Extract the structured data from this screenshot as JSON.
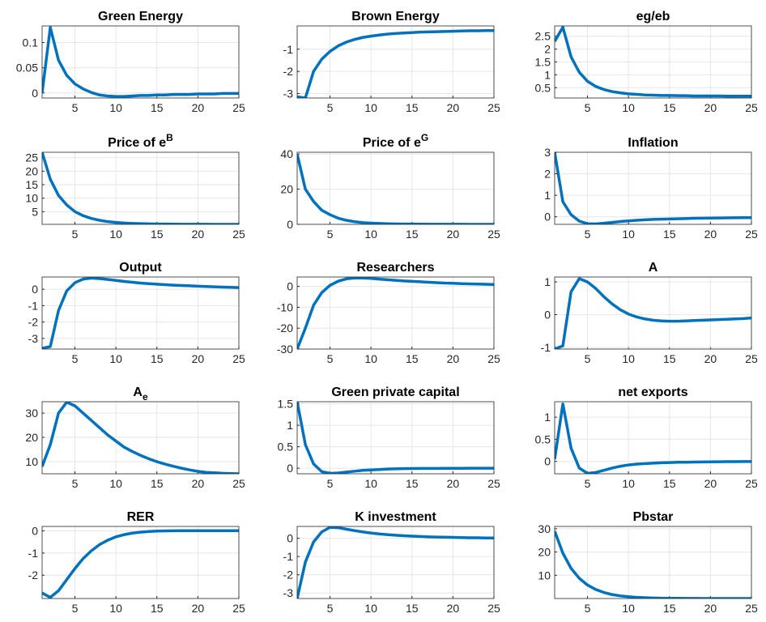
{
  "chart_data": [
    {
      "type": "line",
      "title": "Green Energy",
      "x": [
        1,
        2,
        3,
        4,
        5,
        6,
        7,
        8,
        9,
        10,
        11,
        12,
        13,
        14,
        15,
        16,
        17,
        18,
        19,
        20,
        21,
        22,
        23,
        24,
        25
      ],
      "values": [
        0,
        0.13,
        0.065,
        0.035,
        0.018,
        0.008,
        0.001,
        -0.004,
        -0.006,
        -0.007,
        -0.007,
        -0.006,
        -0.005,
        -0.005,
        -0.004,
        -0.004,
        -0.003,
        -0.003,
        -0.003,
        -0.002,
        -0.002,
        -0.002,
        -0.001,
        -0.001,
        -0.001
      ],
      "color": "#0072bd",
      "xlim": [
        1,
        25
      ],
      "xticks": [
        5,
        10,
        15,
        20,
        25
      ],
      "ylim": [
        -0.01,
        0.133
      ],
      "yticks": [
        0,
        0.05,
        0.1
      ],
      "grid": true
    },
    {
      "type": "line",
      "title": "Brown Energy",
      "x": [
        1,
        2,
        3,
        4,
        5,
        6,
        7,
        8,
        9,
        10,
        11,
        12,
        13,
        14,
        15,
        16,
        17,
        18,
        19,
        20,
        21,
        22,
        23,
        24,
        25
      ],
      "values": [
        -3.15,
        -3.2,
        -2.0,
        -1.45,
        -1.1,
        -0.85,
        -0.68,
        -0.56,
        -0.47,
        -0.41,
        -0.36,
        -0.32,
        -0.29,
        -0.27,
        -0.25,
        -0.23,
        -0.22,
        -0.21,
        -0.2,
        -0.19,
        -0.18,
        -0.17,
        -0.17,
        -0.16,
        -0.16
      ],
      "color": "#0072bd",
      "xlim": [
        1,
        25
      ],
      "xticks": [
        5,
        10,
        15,
        20,
        25
      ],
      "ylim": [
        -3.2,
        0.05
      ],
      "yticks": [
        -3,
        -2,
        -1
      ],
      "grid": true
    },
    {
      "type": "line",
      "title": "eg/eb",
      "x": [
        1,
        2,
        3,
        4,
        5,
        6,
        7,
        8,
        9,
        10,
        11,
        12,
        13,
        14,
        15,
        16,
        17,
        18,
        19,
        20,
        21,
        22,
        23,
        24,
        25
      ],
      "values": [
        2.3,
        2.85,
        1.7,
        1.1,
        0.75,
        0.55,
        0.43,
        0.35,
        0.3,
        0.26,
        0.24,
        0.22,
        0.21,
        0.2,
        0.2,
        0.19,
        0.19,
        0.18,
        0.18,
        0.18,
        0.18,
        0.17,
        0.17,
        0.17,
        0.17
      ],
      "color": "#0072bd",
      "xlim": [
        1,
        25
      ],
      "xticks": [
        5,
        10,
        15,
        20,
        25
      ],
      "ylim": [
        0.1,
        2.9
      ],
      "yticks": [
        0.5,
        1,
        1.5,
        2,
        2.5
      ],
      "grid": true
    },
    {
      "type": "line",
      "title": "Price of e",
      "title_superscript": "B",
      "x": [
        1,
        2,
        3,
        4,
        5,
        6,
        7,
        8,
        9,
        10,
        11,
        12,
        13,
        14,
        15,
        16,
        17,
        18,
        19,
        20,
        21,
        22,
        23,
        24,
        25
      ],
      "values": [
        27,
        17,
        11,
        7.5,
        5,
        3.5,
        2.5,
        1.8,
        1.3,
        1.0,
        0.8,
        0.65,
        0.55,
        0.48,
        0.43,
        0.4,
        0.37,
        0.35,
        0.34,
        0.33,
        0.32,
        0.31,
        0.31,
        0.3,
        0.3
      ],
      "color": "#0072bd",
      "xlim": [
        1,
        25
      ],
      "xticks": [
        5,
        10,
        15,
        20,
        25
      ],
      "ylim": [
        0.3,
        27
      ],
      "yticks": [
        5,
        10,
        15,
        20,
        25
      ],
      "grid": true
    },
    {
      "type": "line",
      "title": "Price of e",
      "title_superscript": "G",
      "x": [
        1,
        2,
        3,
        4,
        5,
        6,
        7,
        8,
        9,
        10,
        11,
        12,
        13,
        14,
        15,
        16,
        17,
        18,
        19,
        20,
        21,
        22,
        23,
        24,
        25
      ],
      "values": [
        40,
        20,
        13,
        8,
        5.5,
        3.5,
        2.3,
        1.5,
        1,
        0.7,
        0.5,
        0.35,
        0.25,
        0.2,
        0.15,
        0.1,
        0.08,
        0.06,
        0.05,
        0.04,
        0.03,
        0.02,
        0.01,
        0.01,
        0
      ],
      "color": "#0072bd",
      "xlim": [
        1,
        25
      ],
      "xticks": [
        5,
        10,
        15,
        20,
        25
      ],
      "ylim": [
        0,
        41
      ],
      "yticks": [
        0,
        20,
        40
      ],
      "grid": true
    },
    {
      "type": "line",
      "title": "Inflation",
      "x": [
        1,
        2,
        3,
        4,
        5,
        6,
        7,
        8,
        9,
        10,
        11,
        12,
        13,
        14,
        15,
        16,
        17,
        18,
        19,
        20,
        21,
        22,
        23,
        24,
        25
      ],
      "values": [
        3,
        0.7,
        0.1,
        -0.2,
        -0.32,
        -0.33,
        -0.3,
        -0.26,
        -0.22,
        -0.19,
        -0.16,
        -0.14,
        -0.12,
        -0.11,
        -0.1,
        -0.09,
        -0.08,
        -0.07,
        -0.065,
        -0.06,
        -0.055,
        -0.05,
        -0.045,
        -0.04,
        -0.04
      ],
      "color": "#0072bd",
      "xlim": [
        1,
        25
      ],
      "xticks": [
        5,
        10,
        15,
        20,
        25
      ],
      "ylim": [
        -0.35,
        3
      ],
      "yticks": [
        0,
        1,
        2,
        3
      ],
      "grid": true
    },
    {
      "type": "line",
      "title": "Output",
      "x": [
        1,
        2,
        3,
        4,
        5,
        6,
        7,
        8,
        9,
        10,
        11,
        12,
        13,
        14,
        15,
        16,
        17,
        18,
        19,
        20,
        21,
        22,
        23,
        24,
        25
      ],
      "values": [
        -3.6,
        -3.5,
        -1.3,
        -0.1,
        0.4,
        0.62,
        0.68,
        0.65,
        0.6,
        0.54,
        0.48,
        0.43,
        0.38,
        0.34,
        0.31,
        0.28,
        0.25,
        0.23,
        0.21,
        0.19,
        0.17,
        0.15,
        0.13,
        0.12,
        0.1
      ],
      "color": "#0072bd",
      "xlim": [
        1,
        25
      ],
      "xticks": [
        5,
        10,
        15,
        20,
        25
      ],
      "ylim": [
        -3.65,
        0.75
      ],
      "yticks": [
        -3,
        -2,
        -1,
        0
      ],
      "grid": true
    },
    {
      "type": "line",
      "title": "Researchers",
      "x": [
        1,
        2,
        3,
        4,
        5,
        6,
        7,
        8,
        9,
        10,
        11,
        12,
        13,
        14,
        15,
        16,
        17,
        18,
        19,
        20,
        21,
        22,
        23,
        24,
        25
      ],
      "values": [
        -30,
        -20,
        -9,
        -3,
        0.5,
        2.5,
        3.6,
        4,
        4,
        3.8,
        3.5,
        3.2,
        2.9,
        2.6,
        2.4,
        2.2,
        2.0,
        1.8,
        1.6,
        1.5,
        1.3,
        1.2,
        1.1,
        1.0,
        0.9
      ],
      "color": "#0072bd",
      "xlim": [
        1,
        25
      ],
      "xticks": [
        5,
        10,
        15,
        20,
        25
      ],
      "ylim": [
        -30,
        4.5
      ],
      "yticks": [
        -30,
        -20,
        -10,
        0
      ],
      "grid": true
    },
    {
      "type": "line",
      "title": "A",
      "x": [
        1,
        2,
        3,
        4,
        5,
        6,
        7,
        8,
        9,
        10,
        11,
        12,
        13,
        14,
        15,
        16,
        17,
        18,
        19,
        20,
        21,
        22,
        23,
        24,
        25
      ],
      "values": [
        -1.05,
        -0.95,
        0.7,
        1.1,
        1.0,
        0.8,
        0.55,
        0.33,
        0.15,
        0.02,
        -0.07,
        -0.13,
        -0.17,
        -0.19,
        -0.2,
        -0.2,
        -0.19,
        -0.18,
        -0.17,
        -0.16,
        -0.15,
        -0.14,
        -0.13,
        -0.12,
        -0.1
      ],
      "color": "#0072bd",
      "xlim": [
        1,
        25
      ],
      "xticks": [
        5,
        10,
        15,
        20,
        25
      ],
      "ylim": [
        -1.05,
        1.15
      ],
      "yticks": [
        -1,
        0,
        1
      ],
      "grid": true
    },
    {
      "type": "line",
      "title": "A",
      "title_subscript": "e",
      "x": [
        1,
        2,
        3,
        4,
        5,
        6,
        7,
        8,
        9,
        10,
        11,
        12,
        13,
        14,
        15,
        16,
        17,
        18,
        19,
        20,
        21,
        22,
        23,
        24,
        25
      ],
      "values": [
        8,
        17,
        30,
        34.5,
        33,
        30,
        27,
        24,
        21,
        18.5,
        16,
        14.2,
        12.6,
        11.2,
        10,
        9,
        8.1,
        7.3,
        6.6,
        6.0,
        5.6,
        5.4,
        5.2,
        5.1,
        5.0
      ],
      "color": "#0072bd",
      "xlim": [
        1,
        25
      ],
      "xticks": [
        5,
        10,
        15,
        20,
        25
      ],
      "ylim": [
        5,
        34.7
      ],
      "yticks": [
        10,
        20,
        30
      ],
      "grid": true
    },
    {
      "type": "line",
      "title": "Green private capital",
      "x": [
        1,
        2,
        3,
        4,
        5,
        6,
        7,
        8,
        9,
        10,
        11,
        12,
        13,
        14,
        15,
        16,
        17,
        18,
        19,
        20,
        21,
        22,
        23,
        24,
        25
      ],
      "values": [
        1.55,
        0.55,
        0.1,
        -0.08,
        -0.12,
        -0.11,
        -0.09,
        -0.07,
        -0.05,
        -0.04,
        -0.03,
        -0.02,
        -0.015,
        -0.01,
        -0.008,
        -0.006,
        -0.005,
        -0.004,
        -0.003,
        -0.002,
        -0.002,
        -0.001,
        -0.001,
        0,
        0
      ],
      "color": "#0072bd",
      "xlim": [
        1,
        25
      ],
      "xticks": [
        5,
        10,
        15,
        20,
        25
      ],
      "ylim": [
        -0.13,
        1.55
      ],
      "yticks": [
        0,
        0.5,
        1,
        1.5
      ],
      "grid": true
    },
    {
      "type": "line",
      "title": "net exports",
      "x": [
        1,
        2,
        3,
        4,
        5,
        6,
        7,
        8,
        9,
        10,
        11,
        12,
        13,
        14,
        15,
        16,
        17,
        18,
        19,
        20,
        21,
        22,
        23,
        24,
        25
      ],
      "values": [
        0.05,
        1.3,
        0.3,
        -0.15,
        -0.27,
        -0.25,
        -0.2,
        -0.15,
        -0.11,
        -0.08,
        -0.06,
        -0.05,
        -0.04,
        -0.03,
        -0.025,
        -0.02,
        -0.018,
        -0.015,
        -0.012,
        -0.01,
        -0.008,
        -0.006,
        -0.005,
        -0.004,
        -0.003
      ],
      "color": "#0072bd",
      "xlim": [
        1,
        25
      ],
      "xticks": [
        5,
        10,
        15,
        20,
        25
      ],
      "ylim": [
        -0.28,
        1.35
      ],
      "yticks": [
        0,
        0.5,
        1
      ],
      "grid": true
    },
    {
      "type": "line",
      "title": "RER",
      "x": [
        1,
        2,
        3,
        4,
        5,
        6,
        7,
        8,
        9,
        10,
        11,
        12,
        13,
        14,
        15,
        16,
        17,
        18,
        19,
        20,
        21,
        22,
        23,
        24,
        25
      ],
      "values": [
        -2.8,
        -3.0,
        -2.7,
        -2.2,
        -1.7,
        -1.25,
        -0.9,
        -0.62,
        -0.42,
        -0.27,
        -0.17,
        -0.1,
        -0.06,
        -0.03,
        -0.01,
        0,
        0.005,
        0.01,
        0.01,
        0.01,
        0.01,
        0.01,
        0.01,
        0.01,
        0.01
      ],
      "color": "#0072bd",
      "xlim": [
        1,
        25
      ],
      "xticks": [
        5,
        10,
        15,
        20,
        25
      ],
      "ylim": [
        -3.05,
        0.2
      ],
      "yticks": [
        -2,
        -1,
        0
      ],
      "grid": true
    },
    {
      "type": "line",
      "title": "K investment",
      "x": [
        1,
        2,
        3,
        4,
        5,
        6,
        7,
        8,
        9,
        10,
        11,
        12,
        13,
        14,
        15,
        16,
        17,
        18,
        19,
        20,
        21,
        22,
        23,
        24,
        25
      ],
      "values": [
        -3.3,
        -1.3,
        -0.2,
        0.35,
        0.6,
        0.58,
        0.5,
        0.42,
        0.35,
        0.29,
        0.24,
        0.2,
        0.17,
        0.14,
        0.12,
        0.1,
        0.08,
        0.07,
        0.06,
        0.05,
        0.04,
        0.03,
        0.03,
        0.02,
        0.02
      ],
      "color": "#0072bd",
      "xlim": [
        1,
        25
      ],
      "xticks": [
        5,
        10,
        15,
        20,
        25
      ],
      "ylim": [
        -3.3,
        0.65
      ],
      "yticks": [
        -3,
        -2,
        -1,
        0
      ],
      "grid": true
    },
    {
      "type": "line",
      "title": "Pbstar",
      "x": [
        1,
        2,
        3,
        4,
        5,
        6,
        7,
        8,
        9,
        10,
        11,
        12,
        13,
        14,
        15,
        16,
        17,
        18,
        19,
        20,
        21,
        22,
        23,
        24,
        25
      ],
      "values": [
        29,
        19.5,
        13,
        8.7,
        5.8,
        3.9,
        2.6,
        1.7,
        1.15,
        0.77,
        0.5,
        0.35,
        0.23,
        0.15,
        0.1,
        0.07,
        0.05,
        0.03,
        0.02,
        0.015,
        0.01,
        0.007,
        0.005,
        0.003,
        0.002
      ],
      "color": "#0072bd",
      "xlim": [
        1,
        25
      ],
      "xticks": [
        5,
        10,
        15,
        20,
        25
      ],
      "ylim": [
        0,
        31
      ],
      "yticks": [
        10,
        20,
        30
      ],
      "grid": true
    }
  ]
}
